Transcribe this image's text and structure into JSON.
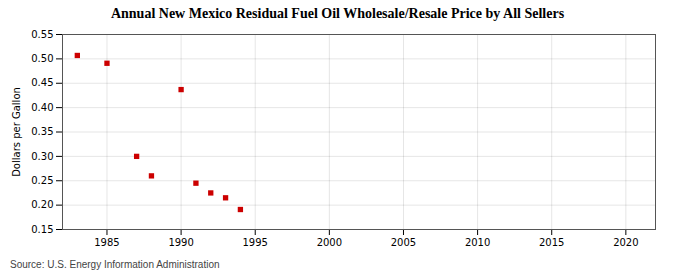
{
  "chart_data": {
    "type": "scatter",
    "title": "Annual New Mexico Residual Fuel Oil Wholesale/Resale Price by All Sellers",
    "y_label": "Dollars per Gallon",
    "source": "Source: U.S. Energy Information Administration",
    "x": [
      1983,
      1985,
      1987,
      1988,
      1990,
      1991,
      1992,
      1993,
      1994
    ],
    "values": [
      0.507,
      0.491,
      0.3,
      0.26,
      0.437,
      0.245,
      0.225,
      0.215,
      0.191
    ],
    "color": "#cc0000",
    "marker": "square",
    "xlim": [
      1982,
      2022
    ],
    "ylim": [
      0.15,
      0.55
    ],
    "xticks": [
      1985,
      1990,
      1995,
      2000,
      2005,
      2010,
      2015,
      2020
    ],
    "yticks": [
      0.15,
      {
        "value": 0.2,
        "label": "0.20"
      },
      0.25,
      {
        "value": 0.3,
        "label": "0.30"
      },
      0.35,
      {
        "value": 0.4,
        "label": "0.40"
      },
      0.45,
      {
        "value": 0.5,
        "label": "0.50"
      },
      0.55
    ],
    "grid": true
  }
}
